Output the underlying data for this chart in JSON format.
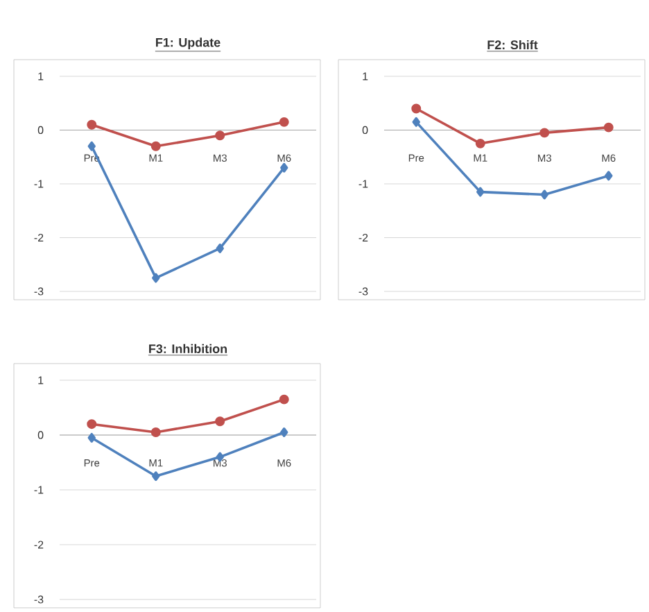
{
  "chart_data": [
    {
      "type": "line",
      "title": "F1: Update",
      "categories": [
        "Pre",
        "M1",
        "M3",
        "M6"
      ],
      "ylim": [
        -3,
        1
      ],
      "yticks": [
        -3,
        -2,
        -1,
        0,
        1
      ],
      "grid": "y",
      "series": [
        {
          "color": "#c0504d",
          "marker": "circle",
          "values": [
            0.1,
            -0.3,
            -0.1,
            0.15
          ]
        },
        {
          "color": "#4f81bd",
          "marker": "diamond",
          "values": [
            -0.3,
            -2.75,
            -2.2,
            -0.7
          ]
        }
      ]
    },
    {
      "type": "line",
      "title": "F2: Shift",
      "categories": [
        "Pre",
        "M1",
        "M3",
        "M6"
      ],
      "ylim": [
        -3,
        1
      ],
      "yticks": [
        -3,
        -2,
        -1,
        0,
        1
      ],
      "grid": "y",
      "series": [
        {
          "color": "#c0504d",
          "marker": "circle",
          "values": [
            0.4,
            -0.25,
            -0.05,
            0.05
          ]
        },
        {
          "color": "#4f81bd",
          "marker": "diamond",
          "values": [
            0.15,
            -1.15,
            -1.2,
            -0.85
          ]
        }
      ]
    },
    {
      "type": "line",
      "title": "F3: Inhibition",
      "categories": [
        "Pre",
        "M1",
        "M3",
        "M6"
      ],
      "ylim": [
        -3,
        1
      ],
      "yticks": [
        -3,
        -2,
        -1,
        0,
        1
      ],
      "grid": "y",
      "series": [
        {
          "color": "#c0504d",
          "marker": "circle",
          "values": [
            0.2,
            0.05,
            0.25,
            0.65
          ]
        },
        {
          "color": "#4f81bd",
          "marker": "diamond",
          "values": [
            -0.05,
            -0.75,
            -0.4,
            0.05
          ]
        }
      ]
    }
  ]
}
